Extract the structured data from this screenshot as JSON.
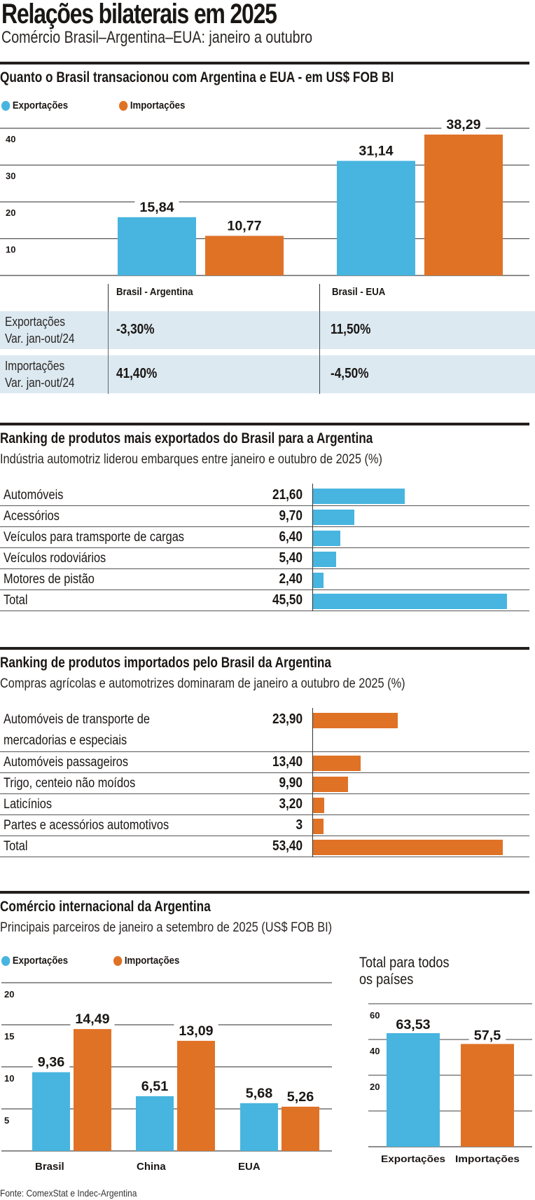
{
  "header": {
    "title": "Relações bilaterais em 2025",
    "subtitle": "Comércio Brasil–Argentina–EUA: janeiro a outubro"
  },
  "colors": {
    "export": "#47b5df",
    "import": "#e07226",
    "table_bg": "#dce9f1",
    "rule": "#231f1c"
  },
  "legend": {
    "export": "Exportações",
    "import": "Importações"
  },
  "section1": {
    "title": "Quanto o Brasil transacionou com Argentina e EUA - em US$ FOB BI",
    "table": {
      "headers": [
        "Brasil - Argentina",
        "Brasil - EUA"
      ],
      "rows": [
        {
          "label_line1": "Exportações",
          "label_line2": "Var. jan-out/24",
          "values": [
            "-3,30%",
            "11,50%"
          ]
        },
        {
          "label_line1": "Importações",
          "label_line2": "Var. jan-out/24",
          "values": [
            "41,40%",
            "-4,50%"
          ]
        }
      ]
    }
  },
  "section2": {
    "title": "Ranking de produtos mais exportados do Brasil para a Argentina",
    "subtitle": "Indústria automotriz liderou embarques entre janeiro e outubro de 2025 (%)"
  },
  "section3": {
    "title": "Ranking de produtos importados pelo Brasil da Argentina",
    "subtitle": "Compras agrícolas e automotrizes dominaram de janeiro a outubro de 2025 (%)"
  },
  "section4": {
    "title": "Comércio internacional da Argentina",
    "subtitle": "Principais parceiros de janeiro a setembro de 2025 (US$ FOB BI)",
    "total_title_line1": "Total para todos",
    "total_title_line2": "os países"
  },
  "source": "Fonte: ComexStat e Indec-Argentina",
  "chart_data": [
    {
      "type": "bar",
      "title": "Quanto o Brasil transacionou com Argentina e EUA - em US$ FOB BI",
      "categories": [
        "Brasil - Argentina",
        "Brasil - EUA"
      ],
      "series": [
        {
          "name": "Exportações",
          "values": [
            15.84,
            31.14
          ],
          "labels": [
            "15,84",
            "31,14"
          ]
        },
        {
          "name": "Importações",
          "values": [
            10.77,
            38.29
          ],
          "labels": [
            "10,77",
            "38,29"
          ]
        }
      ],
      "yticks": [
        10,
        20,
        30,
        40
      ],
      "ylim": [
        0,
        42
      ],
      "grid": true,
      "legend": "top-left"
    },
    {
      "type": "bar",
      "orientation": "horizontal",
      "title": "Ranking de produtos mais exportados do Brasil para a Argentina",
      "categories": [
        "Automóveis",
        "Acessórios",
        "Veículos para tramsporte de cargas",
        "Veículos rodoviários",
        "Motores de pistão",
        "Total"
      ],
      "values": [
        21.6,
        9.7,
        6.4,
        5.4,
        2.4,
        45.5
      ],
      "labels": [
        "21,60",
        "9,70",
        "6,40",
        "5,40",
        "2,40",
        "45,50"
      ],
      "unit": "%"
    },
    {
      "type": "bar",
      "orientation": "horizontal",
      "title": "Ranking de produtos importados pelo Brasil da Argentina",
      "categories": [
        "Automóveis de transporte de|mercadorias e especiais",
        "Automóveis passageiros",
        "Trigo, centeio não moídos",
        "Laticínios",
        "Partes e acessórios automotivos",
        "Total"
      ],
      "values": [
        23.9,
        13.4,
        9.9,
        3.2,
        3,
        53.4
      ],
      "labels": [
        "23,90",
        "13,40",
        "9,90",
        "3,20",
        "3",
        "53,40"
      ],
      "unit": "%"
    },
    {
      "type": "bar",
      "title": "Comércio internacional da Argentina",
      "categories": [
        "Brasil",
        "China",
        "EUA"
      ],
      "series": [
        {
          "name": "Exportações",
          "values": [
            9.36,
            6.51,
            5.68
          ],
          "labels": [
            "9,36",
            "6,51",
            "5,68"
          ]
        },
        {
          "name": "Importações",
          "values": [
            14.49,
            13.09,
            5.26
          ],
          "labels": [
            "14,49",
            "13,09",
            "5,26"
          ]
        }
      ],
      "yticks": [
        5,
        10,
        15,
        20
      ],
      "ylim": [
        0,
        20
      ],
      "grid": true,
      "legend": "top-left"
    },
    {
      "type": "bar",
      "title": "Total para todos os países",
      "categories": [
        "Exportações",
        "Importações"
      ],
      "values": [
        63.53,
        57.5
      ],
      "labels": [
        "63,53",
        "57,5"
      ],
      "yticks": [
        20,
        40,
        60,
        80
      ],
      "ylim": [
        0,
        80
      ],
      "grid": true
    }
  ]
}
